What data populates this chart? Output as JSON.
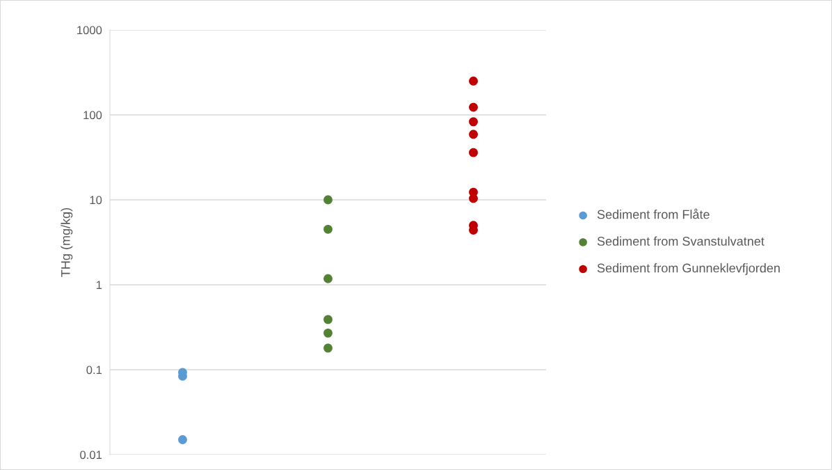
{
  "chart_data": {
    "type": "scatter",
    "ylabel": "THg (mg/kg)",
    "log": "y",
    "ylim": [
      0.01,
      1000
    ],
    "yticks": [
      0.01,
      0.1,
      1,
      10,
      100,
      1000
    ],
    "categories": [
      null,
      null,
      null
    ],
    "grid": "y",
    "legend": "right",
    "marker": "circle",
    "series": [
      {
        "name": "Sediment from Flåte",
        "color": "#5b9bd5",
        "values": [
          0.093,
          null,
          null
        ]
      },
      {
        "color": "#5b9bd5",
        "values": [
          0.084,
          null,
          null
        ]
      },
      {
        "color": "#5b9bd5",
        "values": [
          0.015,
          null,
          null
        ]
      },
      {
        "name": "Sediment from Svanstulvatnet",
        "color": "#548235",
        "values": [
          null,
          10,
          null
        ]
      },
      {
        "color": "#548235",
        "values": [
          null,
          4.5,
          null
        ]
      },
      {
        "color": "#548235",
        "values": [
          null,
          1.18,
          null
        ]
      },
      {
        "color": "#548235",
        "values": [
          null,
          0.39,
          null
        ]
      },
      {
        "color": "#548235",
        "values": [
          null,
          0.27,
          null
        ]
      },
      {
        "color": "#548235",
        "values": [
          null,
          0.18,
          null
        ]
      },
      {
        "name": "Sediment from Gunneklevfjorden",
        "color": "#c00000",
        "values": [
          null,
          null,
          250
        ]
      },
      {
        "color": "#c00000",
        "values": [
          null,
          null,
          123
        ]
      },
      {
        "color": "#c00000",
        "values": [
          null,
          null,
          83
        ]
      },
      {
        "color": "#c00000",
        "values": [
          null,
          null,
          59
        ]
      },
      {
        "color": "#c00000",
        "values": [
          null,
          null,
          36
        ]
      },
      {
        "color": "#c00000",
        "values": [
          null,
          null,
          12.3
        ]
      },
      {
        "color": "#c00000",
        "values": [
          null,
          null,
          10.4
        ]
      },
      {
        "color": "#c00000",
        "values": [
          null,
          null,
          5.0
        ]
      },
      {
        "color": "#c00000",
        "values": [
          null,
          null,
          4.4
        ]
      }
    ]
  }
}
